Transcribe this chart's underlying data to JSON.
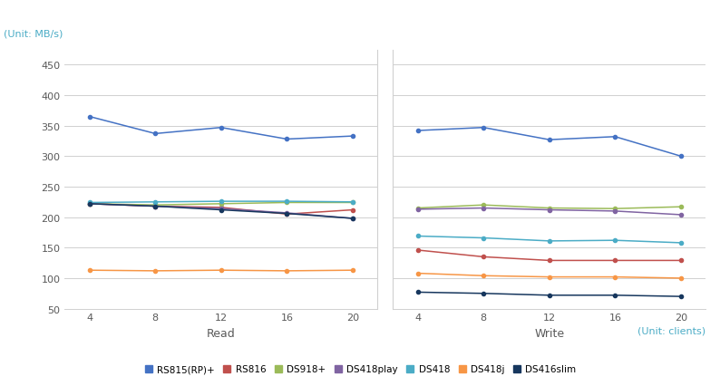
{
  "x": [
    4,
    8,
    12,
    16,
    20
  ],
  "read": {
    "RS815(RP)+": [
      365,
      337,
      347,
      328,
      333
    ],
    "RS816": [
      222,
      218,
      216,
      205,
      212
    ],
    "DS918+": [
      222,
      220,
      222,
      224,
      224
    ],
    "DS418play": [
      222,
      218,
      214,
      207,
      198
    ],
    "DS418": [
      224,
      225,
      226,
      226,
      225
    ],
    "DS418j": [
      113,
      112,
      113,
      112,
      113
    ],
    "DS416slim": [
      222,
      218,
      212,
      206,
      198
    ]
  },
  "write": {
    "RS815(RP)+": [
      342,
      347,
      327,
      332,
      300
    ],
    "RS816": [
      146,
      135,
      129,
      129,
      129
    ],
    "DS918+": [
      215,
      220,
      215,
      214,
      217
    ],
    "DS418play": [
      213,
      215,
      212,
      210,
      204
    ],
    "DS418": [
      169,
      166,
      161,
      162,
      158
    ],
    "DS418j": [
      108,
      104,
      102,
      102,
      100
    ],
    "DS416slim": [
      77,
      75,
      72,
      72,
      70
    ]
  },
  "series_colors": {
    "RS815(RP)+": "#4472C4",
    "RS816": "#C0504D",
    "DS918+": "#9BBB59",
    "DS418play": "#8064A2",
    "DS418": "#4BACC6",
    "DS418j": "#F79646",
    "DS416slim": "#17375E"
  },
  "ylim": [
    50,
    475
  ],
  "yticks": [
    50,
    100,
    150,
    200,
    250,
    300,
    350,
    400,
    450
  ],
  "unit_mbs": "(Unit: MB/s)",
  "unit_clients": "(Unit: clients)",
  "read_label": "Read",
  "write_label": "Write",
  "bg_color": "#FFFFFF",
  "grid_color": "#D0D0D0",
  "label_color": "#595959",
  "unit_color": "#4BACC6",
  "legend_order": [
    "RS815(RP)+",
    "RS816",
    "DS918+",
    "DS418play",
    "DS418",
    "DS418j",
    "DS416slim"
  ]
}
